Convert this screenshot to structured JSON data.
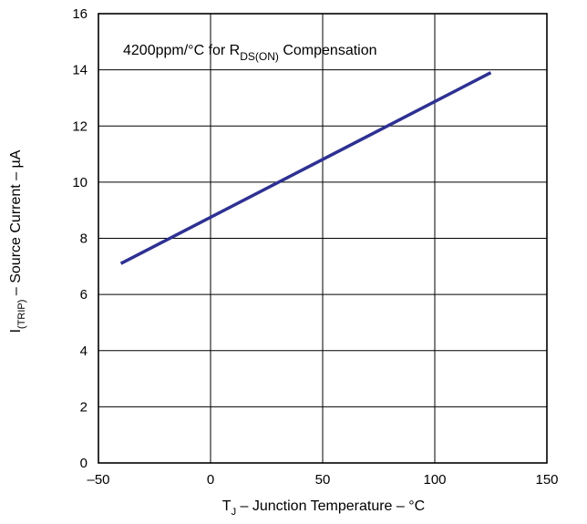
{
  "chart_data": {
    "type": "line",
    "title": "",
    "xlabel": "T_J – Junction Temperature – °C",
    "xlabel_main": "T",
    "xlabel_sub": "J",
    "xlabel_rest": " – Junction Temperature – °C",
    "ylabel": "I_(TRIP) – Source Current – µA",
    "ylabel_main": "I",
    "ylabel_sub": "(TRIP)",
    "ylabel_rest": " – Source Current – µA",
    "xlim": [
      -50,
      150
    ],
    "ylim": [
      0,
      16
    ],
    "x_ticks": [
      -50,
      0,
      50,
      100,
      150
    ],
    "x_tick_labels": [
      "–50",
      "0",
      "50",
      "100",
      "150"
    ],
    "y_ticks": [
      0,
      2,
      4,
      6,
      8,
      10,
      12,
      14,
      16
    ],
    "y_tick_labels": [
      "0",
      "2",
      "4",
      "6",
      "8",
      "10",
      "12",
      "14",
      "16"
    ],
    "grid": true,
    "annotation": {
      "prefix": "4200ppm/°C for R",
      "sub": "DS(ON)",
      "suffix": " Compensation"
    },
    "series": [
      {
        "color": "#2e3192",
        "x": [
          -40,
          125
        ],
        "y": [
          7.1,
          13.9
        ]
      }
    ]
  }
}
